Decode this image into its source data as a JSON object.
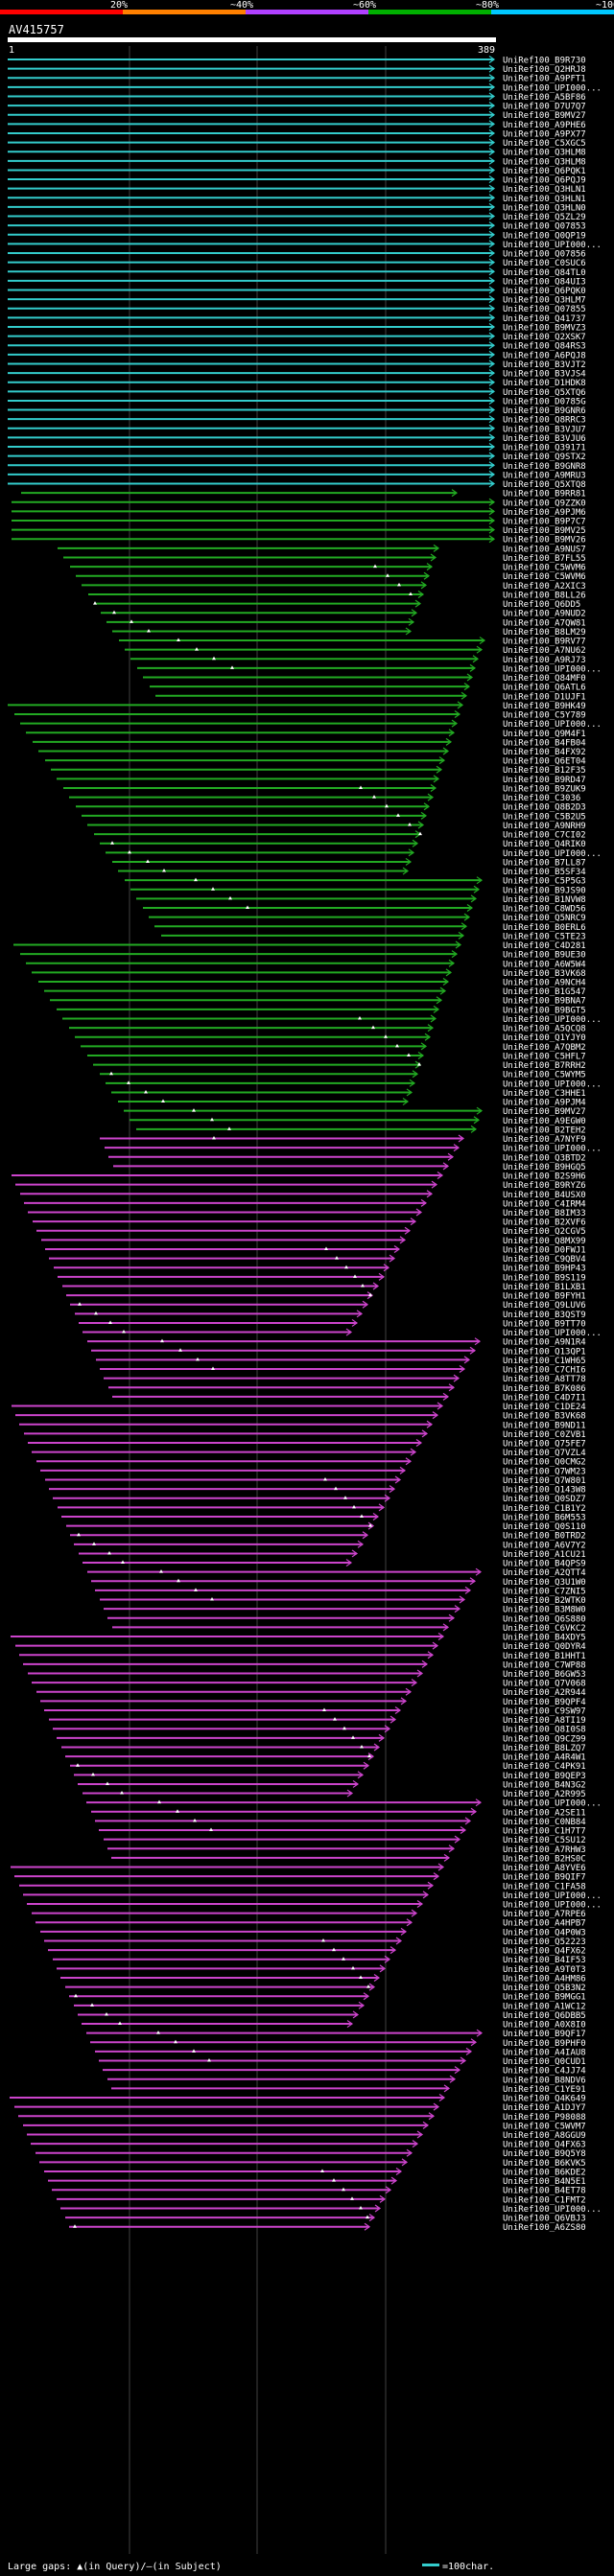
{
  "chart_data": {
    "type": "alignment-overview",
    "title": "AV415757",
    "query_start": "1",
    "query_end": "389",
    "identity_scale": {
      "labels": [
        "20%",
        "~40%",
        "~60%",
        "~80%",
        "~100%"
      ],
      "colors": [
        "#ff0000",
        "#ff8000",
        "#b040ff",
        "#00b000",
        "#00c8ff"
      ]
    },
    "footer_text": "Large gaps: ▲(in Query)/—(in Subject)",
    "scale_text": "=100char.",
    "colors": {
      "cyan": "#33cccc",
      "green": "#22aa22",
      "magenta": "#cc44cc",
      "grid": "#404040"
    },
    "hit_prefix": "UniRef100_",
    "hit_ids": [
      "B9R730",
      "Q2HRJ8",
      "A9PFT1",
      "UPI000...",
      "A5BF86",
      "D7U7Q7",
      "B9MV27",
      "A9PHE6",
      "A9PX77",
      "C5XGC5",
      "Q3HLM8",
      "Q3HLM8",
      "Q6PQK1",
      "Q6PQJ9",
      "Q3HLN1",
      "Q3HLN1",
      "Q3HLN0",
      "Q5ZL29",
      "Q07853",
      "Q0QP19",
      "UPI000...",
      "Q07856",
      "C0SUC6",
      "Q84TL0",
      "Q84UI3",
      "Q6PQK0",
      "Q3HLM7",
      "Q07855",
      "Q41737",
      "B9MVZ3",
      "Q2XSK7",
      "Q84RS3",
      "A6PQJ8",
      "B3VJT2",
      "B3VJS4",
      "D1HDK8",
      "Q5XTQ6",
      "D0785G",
      "B9GNR6",
      "Q8RRC3",
      "B3VJU7",
      "B3VJU6",
      "Q39171",
      "Q9STX2",
      "B9GNR8",
      "A9MRU3",
      "Q5XTQ8",
      "B9RR81",
      "Q9ZZK0",
      "A9PJM6",
      "B9P7C7",
      "B9MV25",
      "B9MV26",
      "A9NUS7",
      "B7FL55",
      "C5WVM6",
      "C5WVM6",
      "A2XIC3",
      "B8LL26",
      "Q6DD5",
      "A9NUD2",
      "A7QW81",
      "B8LM29",
      "B9RV77",
      "A7NU62",
      "A9RJ73",
      "UPI000...",
      "Q84MF0",
      "Q6ATL6",
      "D1UJF1",
      "B9HK49",
      "C5Y789",
      "UPI000...",
      "Q9M4F1",
      "B4FB04",
      "B4FX92",
      "Q6ET04",
      "B12F35",
      "B9RD47",
      "B9ZUK9",
      "C3036",
      "Q8B2D3",
      "C5B2U5",
      "A9NRH9",
      "C7CI02",
      "Q4RIK0",
      "UPI000...",
      "B7LL87",
      "B5SF34",
      "C5P5G3",
      "B9JS90",
      "B1NVW8",
      "C8WD56",
      "Q5NRC9",
      "B0ERL6",
      "C5TE23",
      "C4D281",
      "B9UE30",
      "A6W5W4",
      "B3VK68",
      "A9NCH4",
      "B1G547",
      "B9BNA7",
      "B9BGT5",
      "UPI000...",
      "A5QCQ8",
      "Q1YJY0",
      "A7QBM2",
      "C5HFL7",
      "B7RRH2",
      "C5WYM5",
      "UPI000...",
      "C3HHE1",
      "A9PJM4",
      "B9MV27",
      "A9EGW0",
      "B2TEH2",
      "A7NYF9",
      "UPI000...",
      "Q3BTD2",
      "B9HGQ5",
      "B2S9H6",
      "B9RYZ6",
      "B4USX0",
      "C4IRM4",
      "B8IM33",
      "B2XVF6",
      "Q2CGV5",
      "Q8MX99",
      "D0FWJ1",
      "C9QBV4",
      "B9HP43",
      "B9S119",
      "B1LXB1",
      "B9FYH1",
      "Q9LUV6",
      "B3QST9",
      "B9TT70",
      "UPI000...",
      "A9N1R4",
      "Q13QP1",
      "C1WH65",
      "C7CHI6",
      "A8TT78",
      "B7K086",
      "C4D7I1",
      "C1DE24",
      "B3VK68",
      "B9ND11",
      "C0ZVB1",
      "Q75FE7",
      "Q7VZL4",
      "Q0CMG2",
      "Q7WM23",
      "Q7W801",
      "Q143W8",
      "Q0SDZ7",
      "C1B1Y2",
      "B6M553",
      "Q0S110",
      "B0TRD2",
      "A6V7Y2",
      "A1CU21",
      "B4QPS9",
      "A2QTT4",
      "Q3U1W0",
      "C7ZNI5",
      "B2WTK0",
      "B3M8W0",
      "Q6S880",
      "C6VKC2",
      "B4XDY5",
      "Q0DYR4",
      "B1HHT1",
      "C7WP88",
      "B6GW53",
      "Q7V068",
      "A2R944",
      "B9QPF4",
      "C9SW97",
      "A8TI19",
      "Q8I0S8",
      "Q9CZ99",
      "B8LZQ7",
      "A4R4W1",
      "C4PK91",
      "B9QEP3",
      "B4N3G2",
      "A2R995",
      "UPI000...",
      "A2SE11",
      "C0NB84",
      "C1H7T7",
      "C5SU12",
      "A7RHW3",
      "B2HS0C",
      "A8YVE6",
      "B9QIF7",
      "C1FA58",
      "UPI000...",
      "UPI000...",
      "A7RPE6",
      "A4HPB7",
      "Q4P0W3",
      "Q52223",
      "Q4FX62",
      "B4IF53",
      "A9T0T3",
      "A4HM86",
      "Q5B3N2",
      "B9MGG1",
      "A1WC12",
      "Q6DBB5",
      "A0X8I0",
      "B9QF17",
      "B9PHF0",
      "A4IAU8",
      "Q0CUD1",
      "C4JJ74",
      "B8NDV6",
      "C1YE91",
      "Q4K649",
      "A1DJY7",
      "P98088",
      "C5WVM7",
      "A8GGU9",
      "Q4FX63",
      "B9Q5Y8",
      "B6KVK5",
      "B6KDE2",
      "B4N5E1",
      "B4ET78",
      "C1FMT2",
      "UPI000...",
      "Q6VBJ3",
      "A6ZS80"
    ]
  }
}
